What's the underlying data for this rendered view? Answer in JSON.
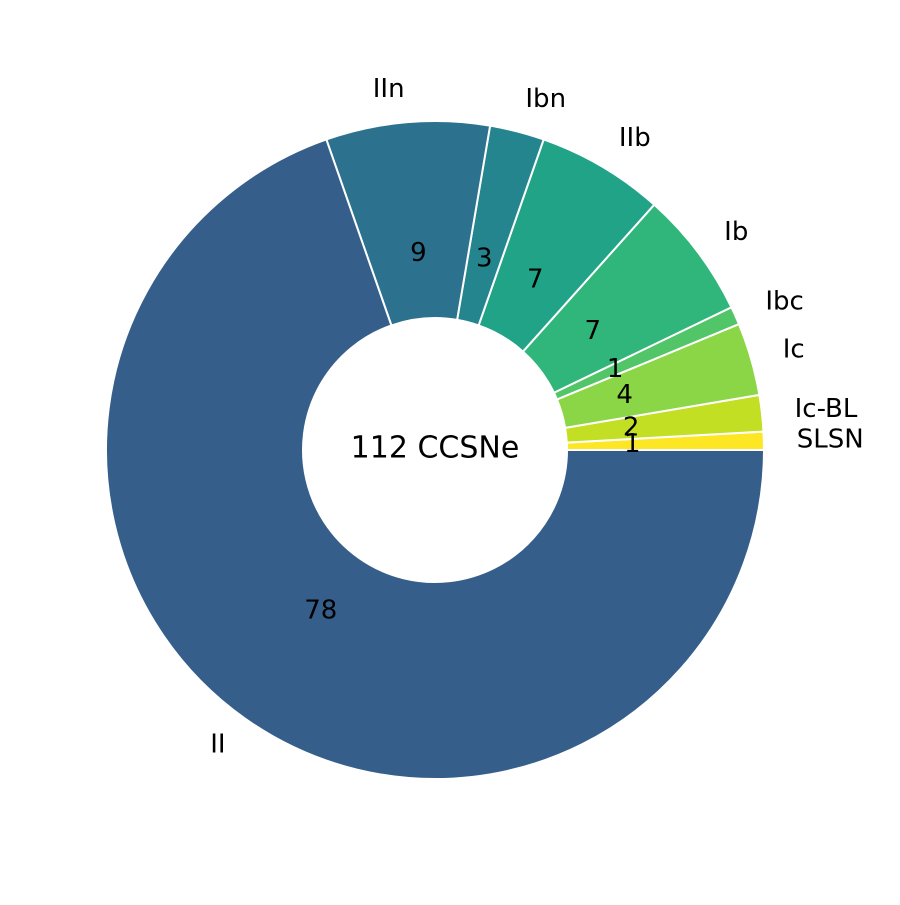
{
  "chart_data": {
    "type": "pie",
    "donut": true,
    "title": "",
    "center_text": "112 CCSNe",
    "start_angle_deg": 0,
    "direction": "counterclockwise",
    "slices": [
      {
        "label": "SLSN",
        "value": 1,
        "color": "#fde725"
      },
      {
        "label": "Ic-BL",
        "value": 2,
        "color": "#c2df23"
      },
      {
        "label": "Ic",
        "value": 4,
        "color": "#8bd646"
      },
      {
        "label": "Ibc",
        "value": 1,
        "color": "#52c569"
      },
      {
        "label": "Ib",
        "value": 7,
        "color": "#30b57a"
      },
      {
        "label": "IIb",
        "value": 7,
        "color": "#20a386"
      },
      {
        "label": "Ibn",
        "value": 3,
        "color": "#25858e"
      },
      {
        "label": "IIn",
        "value": 9,
        "color": "#2c728e"
      },
      {
        "label": "II",
        "value": 78,
        "color": "#355f8a"
      }
    ]
  }
}
